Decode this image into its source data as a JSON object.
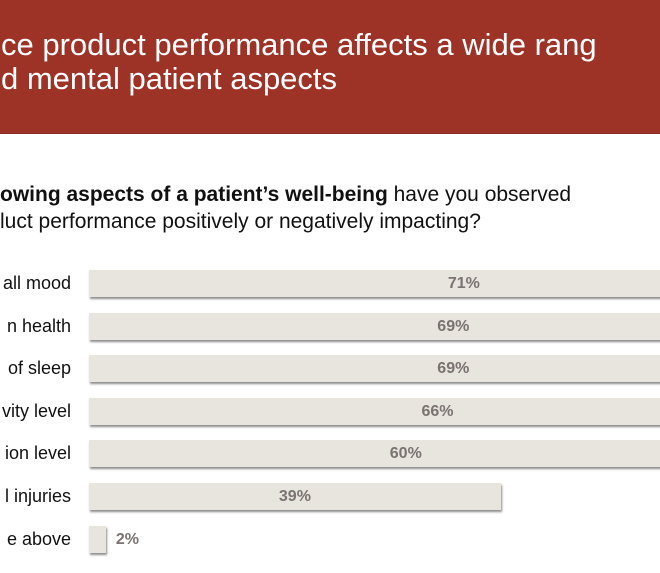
{
  "header": {
    "title_line1": "ce product performance affects a wide rang",
    "title_line2": "d mental patient aspects",
    "background_color": "#9d3326"
  },
  "question": {
    "line1_bold": "owing aspects of a patient’s well-being",
    "line1_rest": " have you observed",
    "line2": "luct performance positively or negatively impacting?"
  },
  "chart_data": {
    "type": "bar",
    "orientation": "horizontal",
    "title": "",
    "xlabel": "",
    "ylabel": "",
    "xlim": [
      0,
      100
    ],
    "grid": false,
    "legend": "none",
    "bar_color": "#e8e4de",
    "label_color": "#7a7371",
    "categories": [
      "all mood",
      "n health",
      "of sleep",
      "vity level",
      "ion level",
      "l injuries",
      "e above"
    ],
    "values": [
      71,
      69,
      69,
      66,
      60,
      39,
      2
    ],
    "value_labels": [
      "71%",
      "69%",
      "69%",
      "66%",
      "60%",
      "39%",
      "2%"
    ]
  }
}
